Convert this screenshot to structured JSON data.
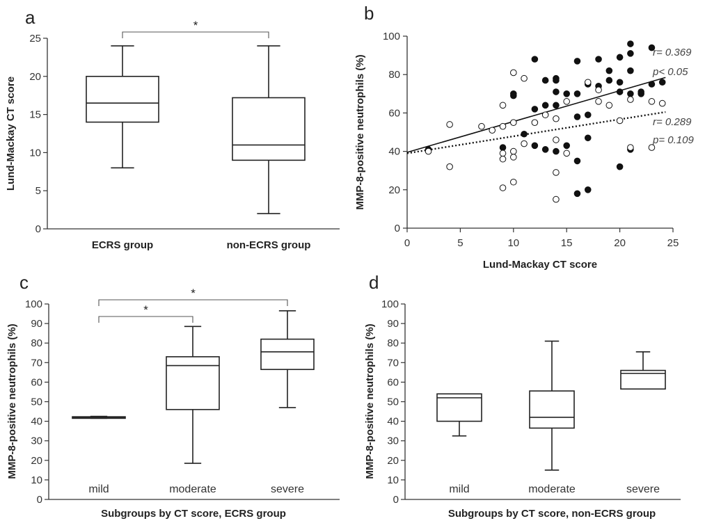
{
  "chart_data": [
    {
      "panel": "a",
      "type": "box",
      "ylabel": "Lund-Mackay CT score",
      "ylim": [
        0,
        25
      ],
      "yticks": [
        "0",
        "5",
        "10",
        "15",
        "20",
        "25"
      ],
      "categories": [
        "ECRS group",
        "non-ECRS group"
      ],
      "boxes": [
        {
          "min": 8,
          "q1": 14,
          "median": 16.5,
          "q3": 20,
          "max": 24
        },
        {
          "min": 2,
          "q1": 9,
          "median": 11,
          "q3": 17.2,
          "max": 24
        }
      ],
      "significance": [
        {
          "from": 0,
          "to": 1,
          "label": "*"
        }
      ]
    },
    {
      "panel": "b",
      "type": "scatter",
      "xlabel": "Lund-Mackay CT score",
      "ylabel": "MMP-8-positive neutrophils (%)",
      "xlim": [
        0,
        25
      ],
      "ylim": [
        0,
        100
      ],
      "xticks": [
        "0",
        "5",
        "10",
        "15",
        "20",
        "25"
      ],
      "yticks": [
        "0",
        "20",
        "40",
        "60",
        "80",
        "100"
      ],
      "series": [
        {
          "marker": "filled",
          "points": [
            [
              2,
              41
            ],
            [
              9,
              42
            ],
            [
              10,
              70
            ],
            [
              10,
              69
            ],
            [
              11,
              49
            ],
            [
              12,
              43
            ],
            [
              12,
              62
            ],
            [
              12,
              88
            ],
            [
              13,
              41
            ],
            [
              13,
              77
            ],
            [
              13,
              64
            ],
            [
              14,
              77
            ],
            [
              14,
              78
            ],
            [
              14,
              71
            ],
            [
              14,
              64
            ],
            [
              14,
              40
            ],
            [
              15,
              43
            ],
            [
              15,
              70
            ],
            [
              16,
              87
            ],
            [
              16,
              70
            ],
            [
              16,
              58
            ],
            [
              16,
              35
            ],
            [
              16,
              18
            ],
            [
              17,
              75
            ],
            [
              17,
              59
            ],
            [
              17,
              47
            ],
            [
              17,
              20
            ],
            [
              18,
              88
            ],
            [
              18,
              74
            ],
            [
              19,
              82
            ],
            [
              19,
              77
            ],
            [
              20,
              89
            ],
            [
              20,
              76
            ],
            [
              20,
              71
            ],
            [
              20,
              32
            ],
            [
              21,
              96
            ],
            [
              21,
              91
            ],
            [
              21,
              82
            ],
            [
              21,
              70
            ],
            [
              21,
              41
            ],
            [
              22,
              70
            ],
            [
              22,
              71
            ],
            [
              23,
              94
            ],
            [
              23,
              75
            ],
            [
              24,
              76
            ]
          ]
        },
        {
          "marker": "open",
          "points": [
            [
              2,
              40
            ],
            [
              4,
              54
            ],
            [
              4,
              32
            ],
            [
              7,
              53
            ],
            [
              8,
              51
            ],
            [
              9,
              64
            ],
            [
              9,
              53
            ],
            [
              9,
              39
            ],
            [
              9,
              36
            ],
            [
              9,
              21
            ],
            [
              10,
              81
            ],
            [
              10,
              55
            ],
            [
              10,
              40
            ],
            [
              10,
              37
            ],
            [
              10,
              24
            ],
            [
              11,
              78
            ],
            [
              11,
              44
            ],
            [
              12,
              55
            ],
            [
              13,
              59
            ],
            [
              14,
              57
            ],
            [
              14,
              46
            ],
            [
              14,
              29
            ],
            [
              14,
              15
            ],
            [
              15,
              39
            ],
            [
              15,
              66
            ],
            [
              17,
              76
            ],
            [
              18,
              72
            ],
            [
              18,
              66
            ],
            [
              19,
              64
            ],
            [
              20,
              56
            ],
            [
              21,
              67
            ],
            [
              21,
              42
            ],
            [
              23,
              66
            ],
            [
              23,
              42
            ],
            [
              24,
              65
            ]
          ]
        }
      ],
      "fits": [
        {
          "style": "solid",
          "x": [
            0,
            24.3
          ],
          "y": [
            39.5,
            78.5
          ]
        },
        {
          "style": "dotted",
          "x": [
            0,
            24.3
          ],
          "y": [
            39,
            60.5
          ]
        }
      ],
      "annotations": [
        {
          "r": "r= 0.369",
          "p": "p< 0.05"
        },
        {
          "r": "r= 0.289",
          "p": "p= 0.109"
        }
      ]
    },
    {
      "panel": "c",
      "type": "box",
      "ylabel": "MMP-8-positive neutrophils (%)",
      "xlabel": "Subgroups by CT score, ECRS group",
      "ylim": [
        0,
        100
      ],
      "yticks": [
        "0",
        "10",
        "20",
        "30",
        "40",
        "50",
        "60",
        "70",
        "80",
        "90",
        "100"
      ],
      "categories": [
        "mild",
        "moderate",
        "severe"
      ],
      "boxes": [
        {
          "min": 41.5,
          "q1": 41.5,
          "median": 42,
          "q3": 42.3,
          "max": 42.5
        },
        {
          "min": 18.5,
          "q1": 46,
          "median": 68.5,
          "q3": 73,
          "max": 88.5
        },
        {
          "min": 47,
          "q1": 66.5,
          "median": 75.5,
          "q3": 82,
          "max": 96.5
        }
      ],
      "significance": [
        {
          "from": 0,
          "to": 1,
          "label": "*"
        },
        {
          "from": 0,
          "to": 2,
          "label": "*"
        }
      ]
    },
    {
      "panel": "d",
      "type": "box",
      "ylabel": "MMP-8-positive neutrophils (%)",
      "xlabel": "Subgroups by CT score, non-ECRS group",
      "ylim": [
        0,
        100
      ],
      "yticks": [
        "0",
        "10",
        "20",
        "30",
        "40",
        "50",
        "60",
        "70",
        "80",
        "90",
        "100"
      ],
      "categories": [
        "mild",
        "moderate",
        "severe"
      ],
      "boxes": [
        {
          "min": 32.5,
          "q1": 40,
          "median": 52,
          "q3": 54,
          "max": 54
        },
        {
          "min": 15,
          "q1": 36.5,
          "median": 42,
          "q3": 55.5,
          "max": 81
        },
        {
          "min": 56.5,
          "q1": 56.5,
          "median": 64.5,
          "q3": 66,
          "max": 75.5
        }
      ],
      "significance": []
    }
  ]
}
